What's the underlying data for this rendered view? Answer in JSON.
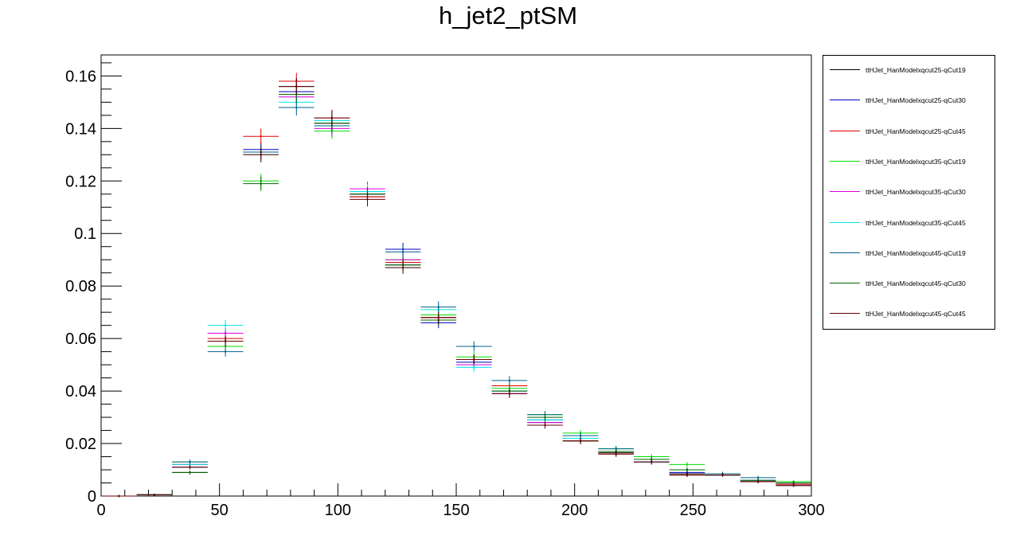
{
  "chart_data": {
    "type": "line",
    "title": "h_jet2_ptSM",
    "xlabel": "",
    "ylabel": "",
    "xlim": [
      0,
      300
    ],
    "ylim": [
      0,
      0.168
    ],
    "grid": false,
    "legend_position": "top-right",
    "x_tick_labels": [
      "0",
      "50",
      "100",
      "150",
      "200",
      "250",
      "300"
    ],
    "y_tick_labels": [
      "0",
      "0.02",
      "0.04",
      "0.06",
      "0.08",
      "0.1",
      "0.12",
      "0.14",
      "0.16"
    ],
    "bin_edges": [
      0,
      15,
      30,
      45,
      60,
      75,
      90,
      105,
      120,
      135,
      150,
      165,
      180,
      195,
      210,
      225,
      240,
      255,
      270,
      285,
      300
    ],
    "series": [
      {
        "name": "ttHJet_HanModelxqcut25-qCut19",
        "color": "#000000",
        "values": [
          0,
          0.0005,
          0.009,
          0.059,
          0.131,
          0.156,
          0.142,
          0.114,
          0.088,
          0.068,
          0.052,
          0.04,
          0.028,
          0.021,
          0.0165,
          0.013,
          0.0085,
          0.008,
          0.0055,
          0.004
        ]
      },
      {
        "name": "ttHJet_HanModelxqcut25-qCut30",
        "color": "#0000cc",
        "values": [
          0,
          0.0005,
          0.011,
          0.062,
          0.132,
          0.154,
          0.143,
          0.115,
          0.094,
          0.066,
          0.051,
          0.039,
          0.029,
          0.022,
          0.017,
          0.013,
          0.009,
          0.008,
          0.0055,
          0.0045
        ]
      },
      {
        "name": "ttHJet_HanModelxqcut25-qCut45",
        "color": "#e00000",
        "values": [
          0,
          0.0005,
          0.012,
          0.06,
          0.137,
          0.158,
          0.144,
          0.114,
          0.089,
          0.068,
          0.052,
          0.042,
          0.027,
          0.021,
          0.016,
          0.013,
          0.008,
          0.008,
          0.0055,
          0.0045
        ]
      },
      {
        "name": "ttHJet_HanModelxqcut35-qCut19",
        "color": "#00dd00",
        "values": [
          0,
          0.0005,
          0.013,
          0.057,
          0.12,
          0.153,
          0.139,
          0.116,
          0.09,
          0.069,
          0.053,
          0.041,
          0.031,
          0.024,
          0.018,
          0.015,
          0.012,
          0.008,
          0.006,
          0.0055
        ]
      },
      {
        "name": "ttHJet_HanModelxqcut35-qCut30",
        "color": "#dd00dd",
        "values": [
          0,
          0.0005,
          0.012,
          0.062,
          0.131,
          0.152,
          0.14,
          0.117,
          0.09,
          0.067,
          0.05,
          0.039,
          0.028,
          0.022,
          0.017,
          0.013,
          0.01,
          0.008,
          0.006,
          0.005
        ]
      },
      {
        "name": "ttHJet_HanModelxqcut35-qCut45",
        "color": "#00e5e5",
        "values": [
          0,
          0.0005,
          0.012,
          0.065,
          0.13,
          0.15,
          0.143,
          0.116,
          0.087,
          0.071,
          0.049,
          0.04,
          0.029,
          0.022,
          0.017,
          0.013,
          0.01,
          0.008,
          0.006,
          0.005
        ]
      },
      {
        "name": "ttHJet_HanModelxqcut45-qCut19",
        "color": "#00608f",
        "values": [
          0,
          0.0005,
          0.013,
          0.055,
          0.131,
          0.148,
          0.141,
          0.115,
          0.093,
          0.072,
          0.057,
          0.044,
          0.031,
          0.023,
          0.018,
          0.013,
          0.01,
          0.0085,
          0.007,
          0.005
        ]
      },
      {
        "name": "ttHJet_HanModelxqcut45-qCut30",
        "color": "#006600",
        "values": [
          0,
          0.0005,
          0.009,
          0.059,
          0.119,
          0.153,
          0.142,
          0.115,
          0.088,
          0.067,
          0.052,
          0.04,
          0.03,
          0.021,
          0.017,
          0.014,
          0.01,
          0.008,
          0.006,
          0.005
        ]
      },
      {
        "name": "ttHJet_HanModelxqcut45-qCut45",
        "color": "#660000",
        "values": [
          0,
          0.0005,
          0.011,
          0.059,
          0.13,
          0.156,
          0.144,
          0.113,
          0.087,
          0.068,
          0.052,
          0.039,
          0.027,
          0.021,
          0.016,
          0.013,
          0.008,
          0.008,
          0.0055,
          0.004
        ]
      }
    ]
  }
}
